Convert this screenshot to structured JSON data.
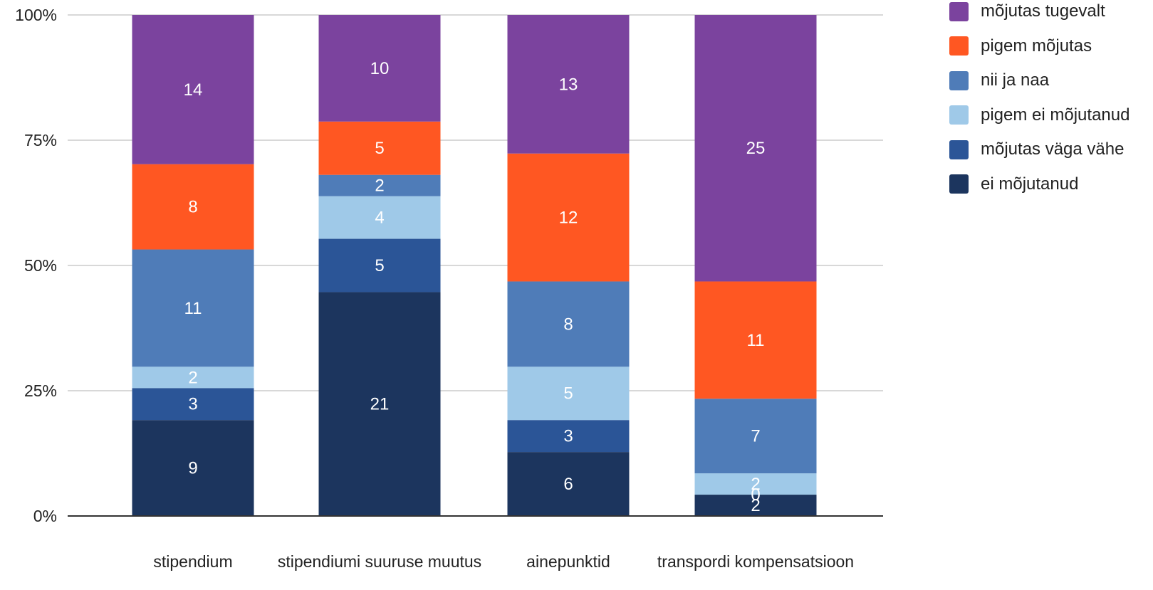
{
  "chart_data": {
    "type": "bar",
    "stacked": "percent",
    "categories": [
      "stipendium",
      "stipendiumi suuruse muutus",
      "ainepunktid",
      "transpordi kompensatsioon"
    ],
    "series": [
      {
        "name": "ei mõjutanud",
        "color": "#1c355e",
        "values": [
          9,
          21,
          6,
          2
        ]
      },
      {
        "name": "mõjutas väga vähe",
        "color": "#2b5597",
        "values": [
          3,
          5,
          3,
          0
        ]
      },
      {
        "name": "pigem ei mõjutanud",
        "color": "#9fc9e8",
        "values": [
          2,
          4,
          5,
          2
        ]
      },
      {
        "name": "nii ja naa",
        "color": "#4f7cb8",
        "values": [
          11,
          2,
          8,
          7
        ]
      },
      {
        "name": "pigem mõjutas",
        "color": "#ff5722",
        "values": [
          8,
          5,
          12,
          11
        ]
      },
      {
        "name": "mõjutas tugevalt",
        "color": "#7b439e",
        "values": [
          14,
          10,
          13,
          25
        ]
      }
    ],
    "legend_order": [
      "mõjutas tugevalt",
      "pigem mõjutas",
      "nii ja naa",
      "pigem ei mõjutanud",
      "mõjutas väga vähe",
      "ei mõjutanud"
    ],
    "y_ticks": [
      "0%",
      "25%",
      "50%",
      "75%",
      "100%"
    ],
    "ylim": [
      0,
      100
    ],
    "grid": true,
    "legend_position": "right",
    "title": "",
    "xlabel": "",
    "ylabel": ""
  }
}
